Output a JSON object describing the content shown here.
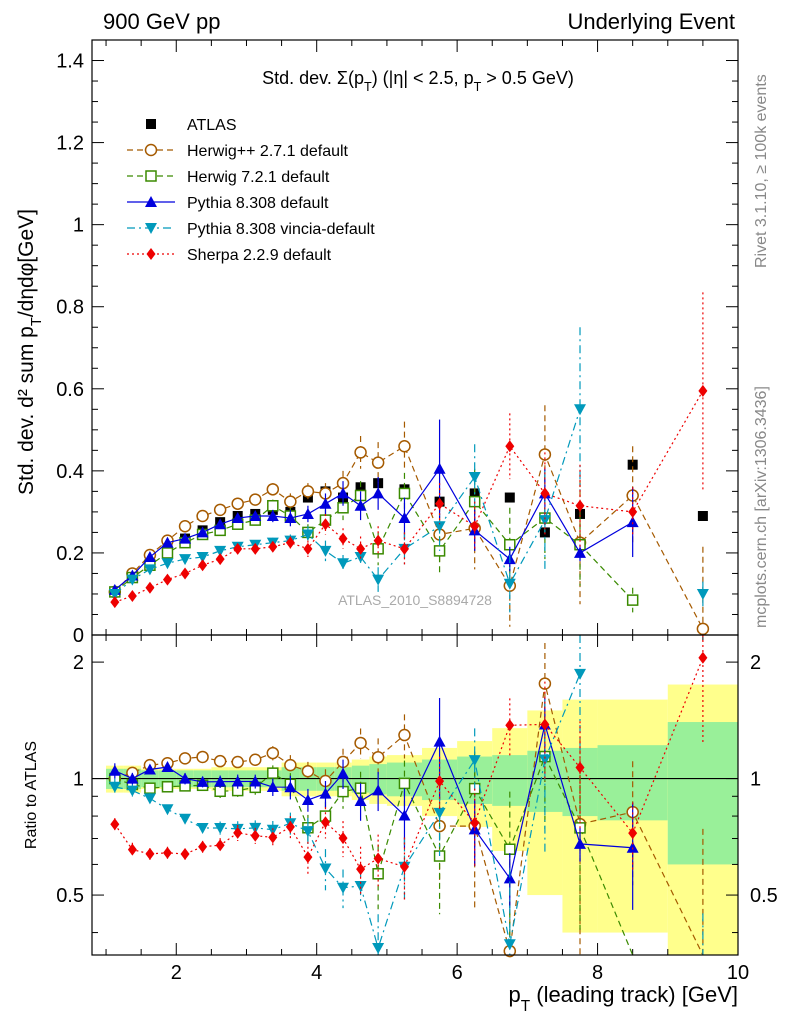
{
  "header": {
    "left": "900 GeV pp",
    "right": "Underlying Event"
  },
  "side": {
    "top": "Rivet 3.1.10, ≥ 100k events",
    "bottom": "mcplots.cern.ch [arXiv:1306.3436]"
  },
  "watermark": "ATLAS_2010_S8894728",
  "chart_data": {
    "type": "scatter",
    "title": "Std. dev. Σ(p_T) (|η| < 2.5, p_T > 0.5 GeV)",
    "xlabel": "p_T (leading track) [GeV]",
    "ylabel": "Std. dev. d² sum p_T/dηdφ[GeV]",
    "ratio_ylabel": "Ratio to ATLAS",
    "xlim": [
      0.8,
      10
    ],
    "ylim": [
      0,
      1.45
    ],
    "ratio_ylim": [
      0.35,
      2.35
    ],
    "x_ticks": [
      2,
      4,
      6,
      8,
      10
    ],
    "y_ticks": [
      0,
      0.2,
      0.4,
      0.6,
      0.8,
      1,
      1.2,
      1.4
    ],
    "ratio_ticks": [
      0.5,
      1,
      2
    ],
    "x_bins": [
      1.0,
      1.25,
      1.5,
      1.75,
      2.0,
      2.25,
      2.5,
      2.75,
      3.0,
      3.25,
      3.5,
      3.75,
      4.0,
      4.25,
      4.5,
      4.75,
      5.0,
      5.5,
      6.0,
      6.5,
      7.0,
      7.5,
      8.0,
      9.0,
      10.0
    ],
    "x": [
      1.125,
      1.375,
      1.625,
      1.875,
      2.125,
      2.375,
      2.625,
      2.875,
      3.125,
      3.375,
      3.625,
      3.875,
      4.125,
      4.375,
      4.625,
      4.875,
      5.25,
      5.75,
      6.25,
      6.75,
      7.25,
      7.75,
      8.5,
      9.5
    ],
    "series": [
      {
        "name": "ATLAS",
        "color": "#000000",
        "marker": "square-filled",
        "line": "none",
        "values": [
          0.105,
          0.145,
          0.18,
          0.21,
          0.235,
          0.255,
          0.275,
          0.29,
          0.295,
          0.305,
          0.3,
          0.335,
          0.35,
          0.335,
          0.36,
          0.37,
          0.355,
          0.325,
          0.345,
          0.335,
          0.25,
          0.295,
          0.415,
          0.29
        ],
        "band_inner": [
          0.06,
          0.06,
          0.05,
          0.05,
          0.05,
          0.05,
          0.05,
          0.05,
          0.05,
          0.05,
          0.07,
          0.07,
          0.07,
          0.07,
          0.08,
          0.09,
          0.1,
          0.12,
          0.14,
          0.15,
          0.18,
          0.2,
          0.22,
          0.4
        ],
        "band_outer": [
          0.08,
          0.08,
          0.06,
          0.06,
          0.06,
          0.06,
          0.07,
          0.07,
          0.07,
          0.07,
          0.1,
          0.1,
          0.1,
          0.1,
          0.12,
          0.14,
          0.15,
          0.2,
          0.25,
          0.35,
          0.5,
          0.6,
          0.6,
          0.75
        ]
      },
      {
        "name": "Herwig++ 2.7.1 default",
        "color": "#a55a00",
        "marker": "circle-open",
        "line": "dashed",
        "values": [
          0.105,
          0.15,
          0.195,
          0.23,
          0.265,
          0.29,
          0.305,
          0.32,
          0.33,
          0.355,
          0.325,
          0.35,
          0.345,
          0.37,
          0.445,
          0.42,
          0.46,
          0.245,
          0.26,
          0.12,
          0.44,
          0.225,
          0.34,
          0.015
        ],
        "errors": [
          0.005,
          0.005,
          0.005,
          0.005,
          0.005,
          0.005,
          0.01,
          0.01,
          0.01,
          0.015,
          0.02,
          0.02,
          0.025,
          0.03,
          0.04,
          0.05,
          0.06,
          0.07,
          0.1,
          0.1,
          0.12,
          0.15,
          0.12,
          0.2
        ]
      },
      {
        "name": "Herwig 7.2.1 default",
        "color": "#3a8a00",
        "marker": "square-open",
        "line": "dashed",
        "values": [
          0.105,
          0.14,
          0.17,
          0.2,
          0.225,
          0.245,
          0.255,
          0.27,
          0.28,
          0.315,
          0.29,
          0.25,
          0.28,
          0.31,
          0.34,
          0.21,
          0.345,
          0.205,
          0.325,
          0.22,
          0.285,
          0.22,
          0.085,
          null
        ],
        "errors": [
          0.005,
          0.005,
          0.005,
          0.005,
          0.005,
          0.008,
          0.01,
          0.01,
          0.012,
          0.015,
          0.02,
          0.02,
          0.025,
          0.03,
          0.035,
          0.04,
          0.05,
          0.06,
          0.08,
          0.09,
          0.1,
          0.1,
          0.03,
          null
        ]
      },
      {
        "name": "Pythia 8.308 default",
        "color": "#0000dd",
        "marker": "triangle-up-filled",
        "line": "solid",
        "values": [
          0.11,
          0.145,
          0.19,
          0.225,
          0.235,
          0.25,
          0.27,
          0.285,
          0.29,
          0.29,
          0.285,
          0.295,
          0.32,
          0.345,
          0.315,
          0.345,
          0.285,
          0.405,
          0.255,
          0.185,
          0.345,
          0.2,
          0.275,
          null
        ],
        "errors": [
          0.005,
          0.005,
          0.005,
          0.005,
          0.008,
          0.008,
          0.01,
          0.012,
          0.012,
          0.015,
          0.02,
          0.02,
          0.025,
          0.03,
          0.035,
          0.04,
          0.05,
          0.12,
          0.05,
          0.03,
          0.06,
          0.02,
          0.085,
          null
        ]
      },
      {
        "name": "Pythia 8.308 vincia-default",
        "color": "#0099bb",
        "marker": "triangle-down-filled",
        "line": "dashdot",
        "values": [
          0.1,
          0.135,
          0.16,
          0.175,
          0.185,
          0.19,
          0.205,
          0.215,
          0.22,
          0.225,
          0.23,
          0.245,
          0.205,
          0.175,
          0.19,
          0.135,
          0.21,
          0.265,
          0.385,
          0.125,
          0.28,
          0.55,
          null,
          0.1
        ],
        "errors": [
          0.005,
          0.005,
          0.005,
          0.005,
          0.005,
          0.005,
          0.008,
          0.01,
          0.01,
          0.012,
          0.015,
          0.02,
          0.025,
          0.02,
          0.02,
          0.03,
          0.04,
          0.06,
          0.08,
          0.07,
          0.12,
          0.2,
          null,
          0.03
        ]
      },
      {
        "name": "Sherpa 2.2.9 default",
        "color": "#ee0000",
        "marker": "diamond-filled",
        "line": "dotted",
        "values": [
          0.08,
          0.095,
          0.115,
          0.135,
          0.15,
          0.17,
          0.185,
          0.21,
          0.21,
          0.215,
          0.225,
          0.21,
          0.27,
          0.235,
          0.21,
          0.23,
          0.21,
          0.32,
          0.265,
          0.46,
          0.345,
          0.315,
          0.3,
          0.595
        ],
        "errors": [
          0.003,
          0.004,
          0.004,
          0.005,
          0.005,
          0.006,
          0.008,
          0.01,
          0.01,
          0.012,
          0.015,
          0.02,
          0.025,
          0.025,
          0.03,
          0.035,
          0.04,
          0.05,
          0.06,
          0.08,
          0.1,
          0.1,
          0.06,
          0.24
        ]
      }
    ]
  }
}
